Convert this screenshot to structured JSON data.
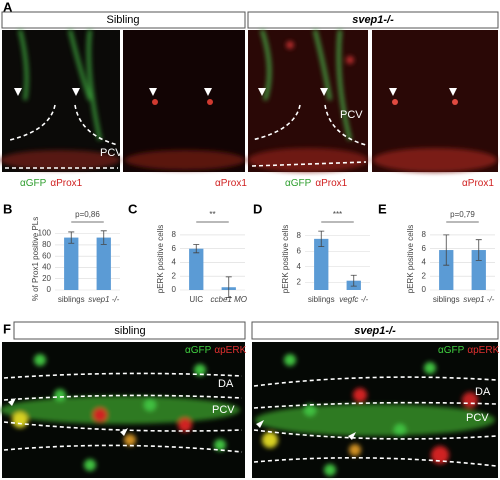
{
  "panel_a": {
    "letter": "A",
    "headers": [
      "Sibling",
      "svep1-/-"
    ],
    "image_labels": [
      "PCV",
      "PCV"
    ],
    "captions": [
      {
        "green": "αGFP",
        "red": "αProx1"
      },
      {
        "red": "αProx1"
      },
      {
        "green": "αGFP",
        "red": "αProx1"
      },
      {
        "red": "αProx1"
      }
    ]
  },
  "panel_f": {
    "letter": "F",
    "headers": [
      "sibling",
      "svep1-/-"
    ],
    "legends": [
      {
        "green": "αGFP",
        "red": "αpERK"
      },
      {
        "green": "αGFP",
        "red": "αpERK"
      }
    ],
    "image_labels": [
      [
        "DA",
        "PCV"
      ],
      [
        "DA",
        "PCV"
      ]
    ]
  },
  "chart_data": [
    {
      "type": "bar",
      "letter": "B",
      "y_label": "% of Prox1 positive PLs",
      "annotation": "p=0,86",
      "color": "#5b9bd5",
      "grid": true,
      "categories": [
        "siblings",
        "svep1 -/-"
      ],
      "values": [
        93,
        93
      ],
      "errors": [
        10,
        12
      ],
      "ylim": [
        0,
        110
      ],
      "yticks": [
        0,
        20,
        40,
        60,
        80,
        100
      ]
    },
    {
      "type": "bar",
      "letter": "C",
      "y_label": "pERK positive cells",
      "annotation": "**",
      "color": "#5b9bd5",
      "grid": true,
      "categories": [
        "UIC",
        "ccbe1 MO"
      ],
      "values": [
        6.0,
        0.4
      ],
      "errors": [
        0.6,
        1.5
      ],
      "ylim": [
        0,
        9
      ],
      "yticks": [
        0,
        2,
        4,
        6,
        8
      ]
    },
    {
      "type": "bar",
      "letter": "D",
      "y_label": "pERK positive cells",
      "annotation": "***",
      "color": "#5b9bd5",
      "grid": true,
      "categories": [
        "siblings",
        "vegfc -/-"
      ],
      "values": [
        7.6,
        2.2
      ],
      "errors": [
        1.0,
        0.7
      ],
      "ylim": [
        1,
        9
      ],
      "yticks": [
        2,
        4,
        6,
        8
      ]
    },
    {
      "type": "bar",
      "letter": "E",
      "y_label": "pERK positive cells",
      "annotation": "p=0,79",
      "color": "#5b9bd5",
      "grid": true,
      "categories": [
        "siblings",
        "svep1 -/-"
      ],
      "values": [
        5.8,
        5.8
      ],
      "errors": [
        2.2,
        1.5
      ],
      "ylim": [
        0,
        9
      ],
      "yticks": [
        0,
        2,
        4,
        6,
        8
      ]
    }
  ]
}
